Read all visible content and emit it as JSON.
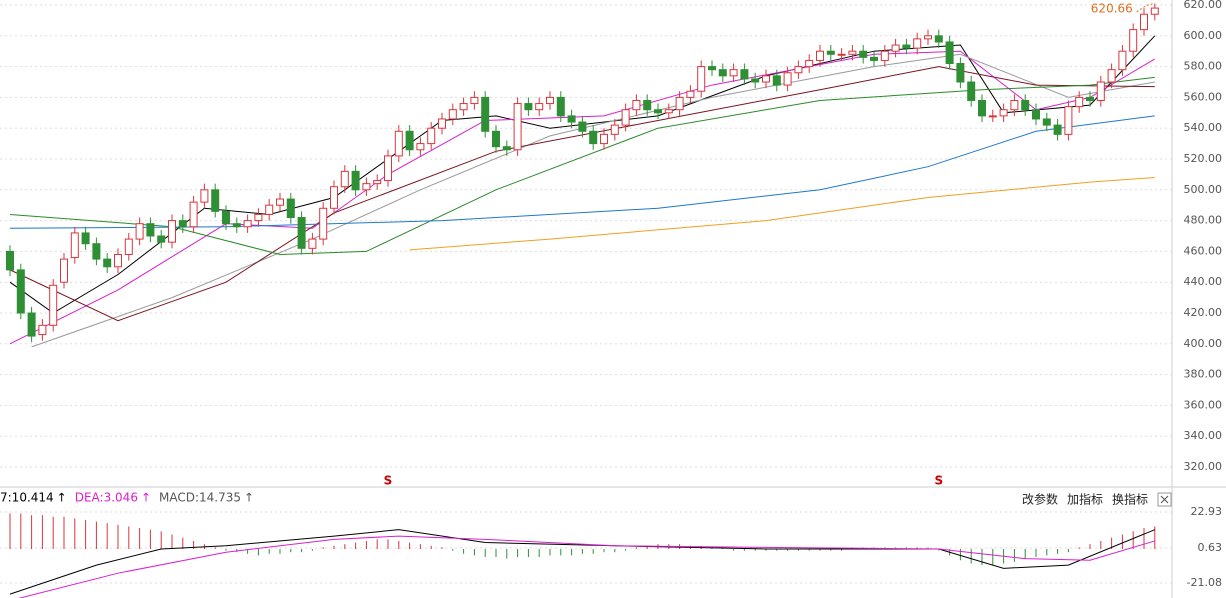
{
  "chart_data": [
    {
      "type": "candlestick",
      "up_color": "#d9363e",
      "down_color": "#2f8f35",
      "open": [
        460,
        448,
        420,
        406,
        412,
        440,
        456,
        472,
        465,
        455,
        450,
        458,
        468,
        478,
        470,
        466,
        480,
        476,
        492,
        500,
        486,
        478,
        476,
        480,
        484,
        490,
        494,
        482,
        462,
        468,
        488,
        502,
        512,
        500,
        504,
        506,
        522,
        538,
        526,
        530,
        540,
        546,
        552,
        556,
        560,
        538,
        528,
        526,
        556,
        552,
        556,
        560,
        548,
        544,
        538,
        530,
        536,
        542,
        552,
        558,
        552,
        550,
        552,
        560,
        564,
        580,
        578,
        574,
        578,
        572,
        570,
        574,
        568,
        576,
        580,
        584,
        590,
        588,
        588,
        590,
        586,
        584,
        590,
        594,
        592,
        598,
        600,
        596,
        582,
        570,
        558,
        548,
        548,
        552,
        558,
        552,
        546,
        542,
        536,
        554,
        560,
        558,
        570,
        578,
        590,
        604,
        614
      ],
      "high": [
        464,
        452,
        424,
        416,
        442,
        459,
        476,
        476,
        469,
        459,
        462,
        472,
        482,
        482,
        474,
        484,
        484,
        496,
        504,
        504,
        490,
        482,
        484,
        488,
        494,
        498,
        498,
        486,
        472,
        492,
        506,
        516,
        516,
        508,
        510,
        526,
        542,
        542,
        534,
        544,
        550,
        556,
        560,
        564,
        564,
        542,
        532,
        560,
        560,
        560,
        564,
        564,
        552,
        548,
        542,
        540,
        546,
        556,
        562,
        562,
        556,
        556,
        564,
        568,
        584,
        584,
        582,
        582,
        582,
        576,
        578,
        578,
        580,
        584,
        588,
        594,
        594,
        592,
        594,
        594,
        590,
        594,
        598,
        598,
        602,
        604,
        604,
        600,
        586,
        574,
        562,
        552,
        556,
        562,
        562,
        556,
        550,
        546,
        558,
        564,
        564,
        574,
        582,
        594,
        608,
        618,
        621
      ],
      "low": [
        444,
        416,
        401,
        402,
        408,
        436,
        452,
        461,
        451,
        446,
        446,
        454,
        464,
        466,
        462,
        462,
        472,
        472,
        488,
        482,
        474,
        472,
        472,
        476,
        480,
        486,
        478,
        458,
        458,
        464,
        484,
        498,
        496,
        496,
        500,
        502,
        518,
        522,
        522,
        526,
        536,
        542,
        548,
        552,
        534,
        524,
        522,
        522,
        548,
        548,
        552,
        544,
        540,
        534,
        526,
        526,
        532,
        538,
        548,
        548,
        546,
        546,
        548,
        556,
        560,
        574,
        570,
        570,
        568,
        566,
        566,
        564,
        564,
        572,
        576,
        580,
        584,
        584,
        584,
        582,
        580,
        580,
        586,
        588,
        588,
        594,
        592,
        578,
        566,
        554,
        544,
        544,
        544,
        548,
        548,
        542,
        538,
        532,
        532,
        550,
        554,
        554,
        566,
        574,
        586,
        600,
        610
      ],
      "close": [
        448,
        420,
        405,
        412,
        438,
        455,
        472,
        465,
        455,
        450,
        458,
        468,
        478,
        470,
        466,
        480,
        476,
        492,
        500,
        486,
        478,
        476,
        480,
        484,
        490,
        494,
        482,
        462,
        468,
        488,
        502,
        512,
        500,
        504,
        506,
        522,
        538,
        526,
        530,
        540,
        546,
        552,
        556,
        560,
        538,
        528,
        526,
        556,
        552,
        556,
        560,
        548,
        544,
        538,
        530,
        536,
        542,
        552,
        558,
        552,
        550,
        552,
        560,
        564,
        580,
        578,
        574,
        578,
        572,
        570,
        574,
        568,
        576,
        580,
        584,
        590,
        588,
        588,
        590,
        586,
        584,
        590,
        594,
        592,
        598,
        600,
        596,
        582,
        570,
        558,
        548,
        548,
        552,
        558,
        552,
        546,
        542,
        536,
        554,
        560,
        558,
        570,
        578,
        590,
        604,
        614,
        618
      ],
      "ma": [
        {
          "color": "#000000",
          "x": [
            0,
            4,
            10,
            18,
            24,
            30,
            40,
            45,
            50,
            60,
            70,
            80,
            88,
            92,
            100,
            106
          ],
          "values": [
            440,
            420,
            445,
            488,
            484,
            495,
            545,
            548,
            540,
            548,
            574,
            590,
            594,
            550,
            555,
            600
          ]
        },
        {
          "color": "#d91fd0",
          "x": [
            0,
            10,
            20,
            28,
            35,
            44,
            55,
            65,
            80,
            88,
            95,
            100,
            106
          ],
          "values": [
            400,
            435,
            478,
            475,
            510,
            545,
            548,
            568,
            588,
            590,
            552,
            560,
            585
          ]
        },
        {
          "color": "#999999",
          "x": [
            2,
            15,
            28,
            38,
            50,
            65,
            80,
            88,
            98,
            106
          ],
          "values": [
            398,
            430,
            468,
            500,
            535,
            560,
            580,
            588,
            560,
            570
          ]
        },
        {
          "color": "#7a1420",
          "x": [
            0,
            10,
            20,
            30,
            45,
            60,
            75,
            86,
            95,
            106
          ],
          "values": [
            448,
            415,
            440,
            485,
            525,
            545,
            565,
            580,
            568,
            567
          ]
        },
        {
          "color": "#2a8a2a",
          "x": [
            0,
            15,
            25,
            33,
            45,
            60,
            75,
            90,
            100,
            106
          ],
          "values": [
            484,
            476,
            458,
            460,
            500,
            540,
            558,
            565,
            568,
            573
          ]
        },
        {
          "color": "#1f78c8",
          "x": [
            0,
            20,
            40,
            60,
            75,
            85,
            95,
            106
          ],
          "values": [
            475,
            476,
            480,
            488,
            500,
            515,
            538,
            548
          ]
        },
        {
          "color": "#f0a020",
          "x": [
            37,
            50,
            70,
            85,
            100,
            106
          ],
          "values": [
            461,
            468,
            480,
            495,
            505,
            508
          ]
        }
      ],
      "ylim": [
        320,
        620
      ],
      "yticks": [
        {
          "value": 620,
          "label": "620.00"
        },
        {
          "value": 600,
          "label": "600.00"
        },
        {
          "value": 580,
          "label": "580.00"
        },
        {
          "value": 560,
          "label": "560.00"
        },
        {
          "value": 540,
          "label": "540.00"
        },
        {
          "value": 520,
          "label": "520.00"
        },
        {
          "value": 500,
          "label": "500.00"
        },
        {
          "value": 480,
          "label": "480.00"
        },
        {
          "value": 460,
          "label": "460.00"
        },
        {
          "value": 440,
          "label": "440.00"
        },
        {
          "value": 420,
          "label": "420.00"
        },
        {
          "value": 400,
          "label": "400.00"
        },
        {
          "value": 380,
          "label": "380.00"
        },
        {
          "value": 360,
          "label": "360.00"
        },
        {
          "value": 340,
          "label": "340.00"
        },
        {
          "value": 320,
          "label": "320.00"
        }
      ],
      "grid": true,
      "max_label": 620.66,
      "signals": [
        {
          "label": "S",
          "at": 35
        },
        {
          "label": "S",
          "at": 86
        }
      ]
    },
    {
      "type": "macd",
      "indicators": [
        {
          "text": "7:10.414",
          "arrow": "↑",
          "color": "#000000"
        },
        {
          "text": "DEA:3.046",
          "arrow": "↑",
          "color": "#d91fd0"
        },
        {
          "text": "MACD:14.735",
          "arrow": "↑",
          "color": "#555555"
        }
      ],
      "histogram": [
        22,
        22,
        21,
        21,
        20,
        20,
        19,
        18,
        17,
        16,
        15,
        14,
        13,
        12,
        11,
        9,
        7,
        5,
        3,
        1,
        -1,
        -2,
        -3,
        -4,
        -3,
        -3,
        -2,
        -2,
        -1,
        1,
        2,
        3,
        4,
        5,
        6,
        6,
        5,
        4,
        3,
        2,
        1,
        -1,
        -3,
        -4,
        -5,
        -5,
        -6,
        -5,
        -5,
        -5,
        -4,
        -4,
        -4,
        -3,
        -3,
        -2,
        -2,
        -1,
        1,
        2,
        3,
        3,
        3,
        2,
        2,
        1,
        1,
        -1,
        -1,
        -1,
        -1,
        -1,
        -1,
        -1,
        -1,
        -1,
        -1,
        -1,
        1,
        1,
        1,
        1,
        1,
        1,
        1,
        1,
        -1,
        -4,
        -7,
        -9,
        -10,
        -10,
        -9,
        -8,
        -6,
        -5,
        -4,
        -3,
        -2,
        1,
        3,
        5,
        7,
        9,
        11,
        13,
        14
      ],
      "series": [
        {
          "color": "#000000",
          "x": [
            0,
            8,
            14,
            20,
            30,
            36,
            44,
            56,
            70,
            86,
            92,
            98,
            106
          ],
          "values": [
            -28,
            -10,
            0,
            2,
            8,
            12,
            4,
            2,
            0,
            0,
            -12,
            -10,
            12
          ]
        },
        {
          "color": "#d91fd0",
          "x": [
            0,
            10,
            20,
            30,
            36,
            44,
            56,
            70,
            86,
            94,
            100,
            106
          ],
          "values": [
            -32,
            -15,
            -2,
            6,
            8,
            6,
            2,
            1,
            0,
            -6,
            -7,
            5
          ]
        }
      ],
      "ylim": [
        -30.4,
        36.6
      ],
      "yticks": [
        22.93,
        0.63,
        -21.08
      ]
    }
  ],
  "toolbar": [
    "改参数",
    "加指标",
    "换指标"
  ]
}
